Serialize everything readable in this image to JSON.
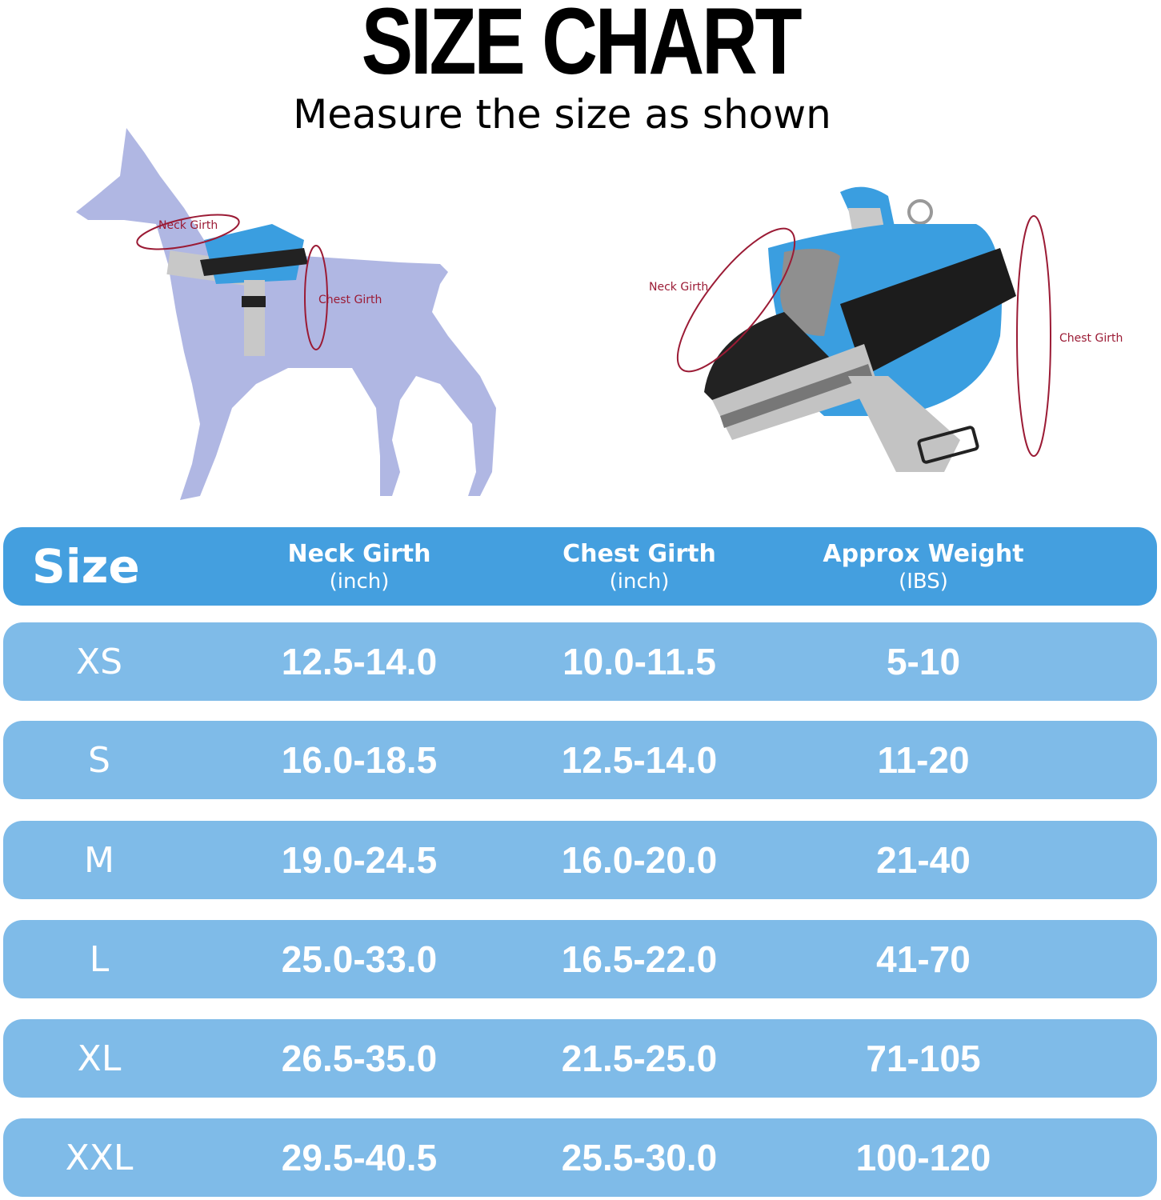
{
  "title": "SIZE CHART",
  "subtitle": "Measure the size as shown",
  "illustrations": {
    "dog": {
      "neck_label": "Neck Girth",
      "chest_label": "Chest Girth"
    },
    "harness": {
      "neck_label": "Neck Girth",
      "chest_label": "Chest Girth"
    }
  },
  "colors": {
    "header": "#449fdf",
    "row": "#7fbbe8",
    "measure_line": "#9b1b35",
    "dog": "#b0b7e3",
    "harness": "#3a9ee0"
  },
  "table": {
    "headers": [
      {
        "main": "Size",
        "unit": ""
      },
      {
        "main": "Neck Girth",
        "unit": "(inch)"
      },
      {
        "main": "Chest Girth",
        "unit": "(inch)"
      },
      {
        "main": "Approx Weight",
        "unit": "(IBS)"
      }
    ],
    "rows": [
      [
        "XS",
        "12.5-14.0",
        "10.0-11.5",
        "5-10"
      ],
      [
        "S",
        "16.0-18.5",
        "12.5-14.0",
        "11-20"
      ],
      [
        "M",
        "19.0-24.5",
        "16.0-20.0",
        "21-40"
      ],
      [
        "L",
        "25.0-33.0",
        "16.5-22.0",
        "41-70"
      ],
      [
        "XL",
        "26.5-35.0",
        "21.5-25.0",
        "71-105"
      ],
      [
        "XXL",
        "29.5-40.5",
        "25.5-30.0",
        "100-120"
      ]
    ]
  }
}
